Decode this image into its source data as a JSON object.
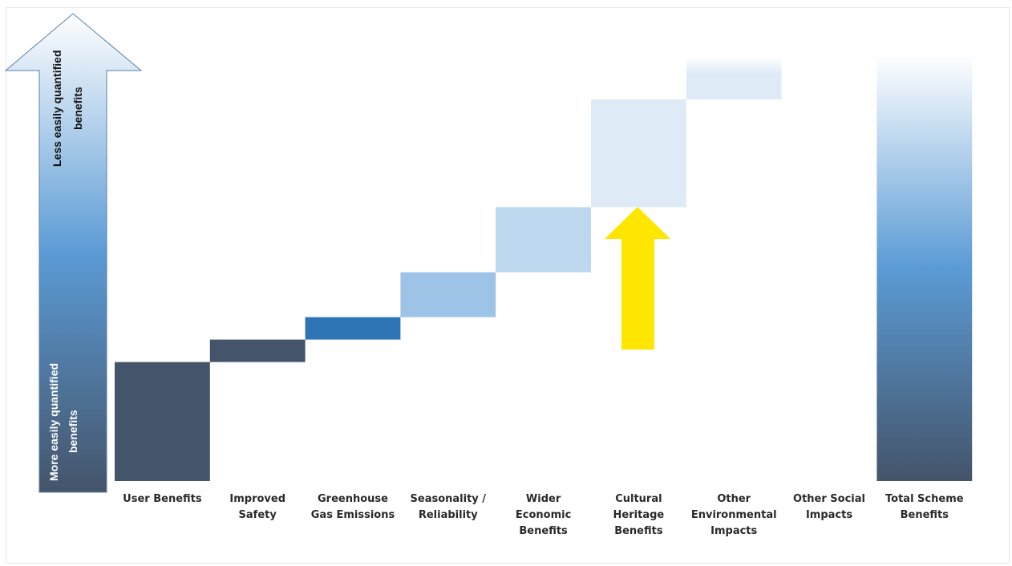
{
  "chart_data": {
    "type": "bar",
    "subtype": "waterfall",
    "categories": [
      [
        "User Benefits"
      ],
      [
        "Improved",
        "Safety"
      ],
      [
        "Greenhouse",
        "Gas Emissions"
      ],
      [
        "Seasonality /",
        "Reliability"
      ],
      [
        "Wider",
        "Economic",
        "Benefits"
      ],
      [
        "Cultural",
        "Heritage",
        "Benefits"
      ],
      [
        "Other",
        "Environmental",
        "Impacts"
      ],
      [
        "Other Social",
        "Impacts"
      ],
      [
        "Total Scheme",
        "Benefits"
      ]
    ],
    "increments": [
      5.3,
      1.0,
      1.0,
      2.0,
      2.9,
      4.8,
      1.9,
      0,
      19.0
    ],
    "total_index": 8,
    "colors": [
      "#44546a",
      "#44546a",
      "#2e75b6",
      "#9dc3e6",
      "#bdd7ee",
      "#deebf7",
      "#deebf7",
      "#ffffff"
    ],
    "ylim": [
      0,
      20
    ],
    "axis_arrow": {
      "bottom_label": [
        "More easily quantified",
        "benefits"
      ],
      "top_label": [
        "Less easily quantified",
        "benefits"
      ],
      "colors": [
        "#44546a",
        "#5b9bd5",
        "#ffffff"
      ]
    },
    "highlight_arrow": {
      "category_index": 5,
      "color": "#ffe600"
    }
  }
}
